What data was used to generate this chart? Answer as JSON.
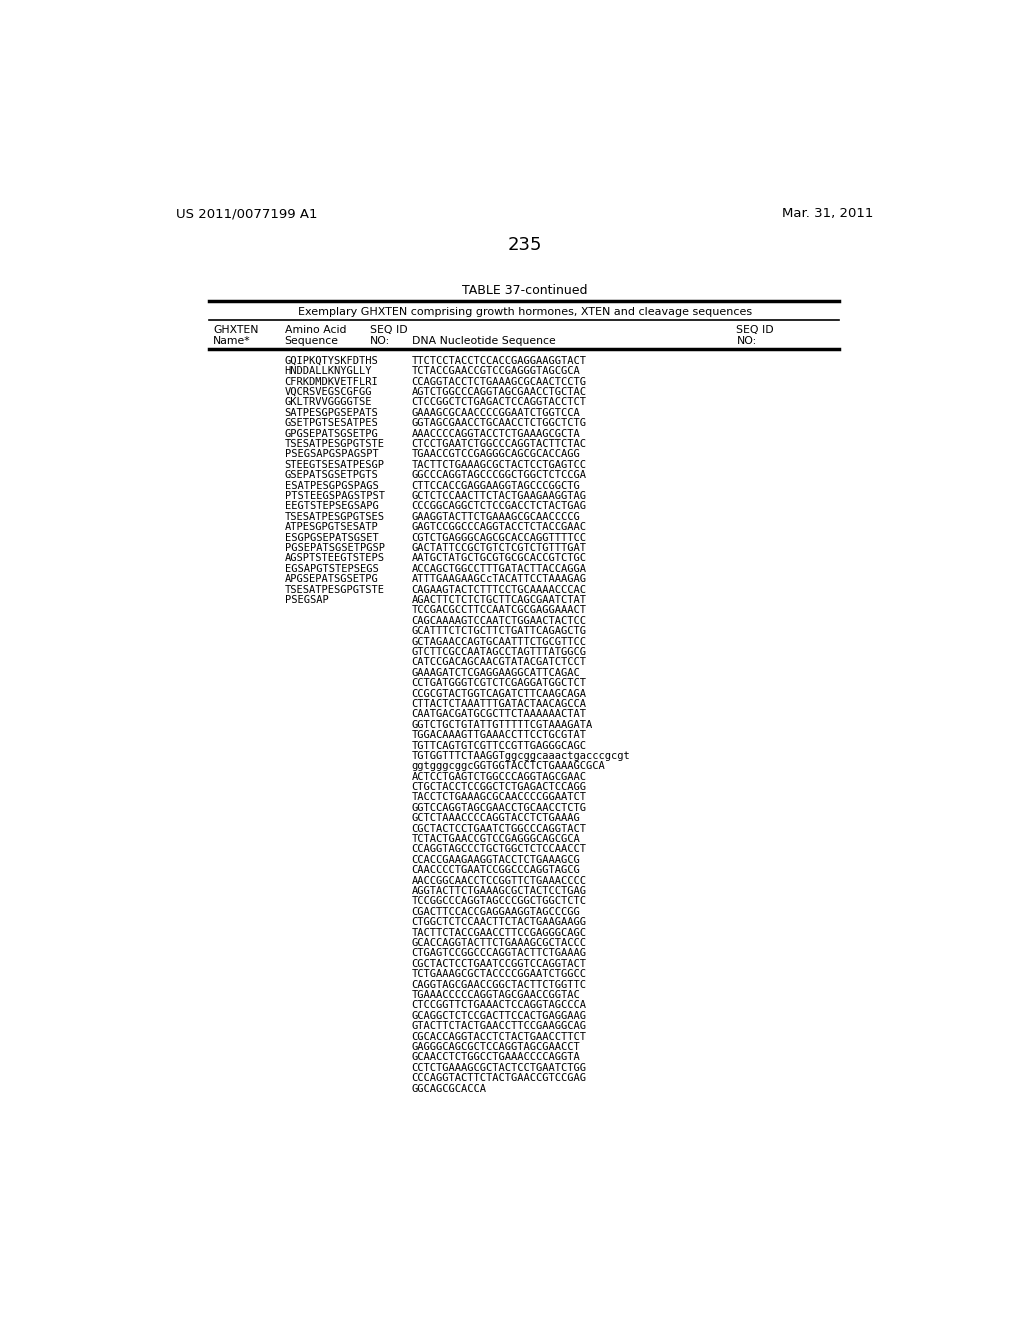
{
  "page_header_left": "US 2011/0077199 A1",
  "page_header_right": "Mar. 31, 2011",
  "page_number": "235",
  "table_title": "TABLE 37-continued",
  "table_subtitle": "Exemplary GHXTEN comprising growth hormones, XTEN and cleavage sequences",
  "col1_header1": "GHXTEN",
  "col1_header2": "Name*",
  "col2_header1": "Amino Acid",
  "col2_header2": "Sequence",
  "col3_header1": "SEQ ID",
  "col3_header2": "NO:",
  "col4_header1": "DNA Nucleotide Sequence",
  "col5_header1": "SEQ ID",
  "col5_header2": "NO:",
  "left_entries": [
    [
      "GQIPKQTYSKFDTHS",
      "TTCTCCTACCTCCACCGAGGAAGGTACT"
    ],
    [
      "HNDDALLKNYGLLY",
      "TCTACCGAACCGTCCGAGGGTAGCGCA"
    ],
    [
      "CFRKDMDKVETFLRI",
      "CCAGGTACCTCTGAAAGCGCAACTCCTG"
    ],
    [
      "VQCRSVEGSCGFGG",
      "AGTCTGGCCCAGGTAGCGAACCTGCTAC"
    ],
    [
      "GKLTRVVGGGGTSE",
      "CTCCGGCTCTGAGACTCCAGGTACCTCT"
    ],
    [
      "SATPESGPGSEPATS",
      "GAAAGCGCAACCCCGGAATCTGGTCCA"
    ],
    [
      "GSETPGTSESATPES",
      "GGTAGCGAACCTGCAACCTCTGGCTCTG"
    ],
    [
      "GPGSEPATSGSETPG",
      "AAACCCCAGGTACCTCTGAAAGCGCTA"
    ],
    [
      "TSESATPESGPGTSTE",
      "CTCCTGAATCTGGCCCAGGTACTTCTAC"
    ],
    [
      "PSEGSAPGSPAGSPT",
      "TGAACCGTCCGAGGGCAGCGCACCAGG"
    ],
    [
      "STEEGTSESATPESGP",
      "TACTTCTGAAAGCGCTACTCCTGAGTCC"
    ],
    [
      "GSEPATSGSETPGTS",
      "GGCCCAGGTAGCCCGGCTGGCTCTCCGA"
    ],
    [
      "ESATPESGPGSPAGS",
      "CTTCCACCGAGGAAGGTAGCCCGGCTG"
    ],
    [
      "PTSTEEGSPAGSTPST",
      "GCTCTCCAACTTCTACTGAAGAAGGTAG"
    ],
    [
      "EEGTSTEPSEGSAPG",
      "CCCGGCAGGCTCTCCGACCTCTACTGAG"
    ],
    [
      "TSESATPESGPGTSES",
      "GAAGGTACTTCTGAAAGCGCAACCCCG"
    ],
    [
      "ATPESGPGTSESATP",
      "GAGTCCGGCCCAGGTACCTCTACCGAAC"
    ],
    [
      "ESGPGSEPATSGSET",
      "CGTCTGAGGGCAGCGCACCAGGTTTTCC"
    ],
    [
      "PGSEPATSGSETPGSP",
      "GACTATTCCGCTGTCTCGTCTGTTTGAT"
    ],
    [
      "AGSPTSTEEGTSTEРS",
      "AATGCTATGCTGCGTGCGCACCGTCTGC"
    ],
    [
      "EGSAPGTSTEPSEGS",
      "ACCAGCTGGCCTTTGATACTTACCAGGA"
    ],
    [
      "APGSEPATSGSETPG",
      "ATTTGAAGAAGCcTACATTCCTAAAGAG"
    ],
    [
      "TSESATPESGPGTSTE",
      "CAGAAGTACTCTTTCCTGCAAAACCCAC"
    ],
    [
      "PSEGSAP",
      "AGACTTCTCTCTGCTTCAGCGAATCTAT"
    ]
  ],
  "continuation_lines": [
    "TCCGACGCCTTCCAATCGCGAGGAAACT",
    "CAGCAAAAGTCCAATCTGGAACTACTCC",
    "GCATTTCTCTGCTTCTGATTCAGAGCTG",
    "GCTAGAACCAGTGCAATTTCTGCGTTCC",
    "GTCTTCGCCAATAGCCTAGTTTATGGCG",
    "CATCCGACAGCAACGTATACGATCTCCT",
    "GAAAGATCTCGAGGAAGGCATTCAGAC",
    "CCTGATGGGTCGTCTCGAGGATGGCTCT",
    "CCGCGTACTGGTCAGATCTTCAAGCAGA",
    "CTTACTCTAAATTTGATACTAACAGCCA",
    "CAATGACGATGCGCTTCTAAAAAACTAT",
    "GGTCTGCTGTATTGTTTTTCGTAAAGATA",
    "TGGACAAAGTTGAAACCTTCCTGCGTAT",
    "TGTTCAGTGTCGTTCCGTTGAGGGCAGC",
    "TGTGGTTTCTAAGGTggcggcaaactgacccgcgt",
    "ggtgggcggcGGTGGTACCTCTGAAAGCGCA",
    "ACTCCTGAGTCTGGCCCAGGTAGCGAAC",
    "CTGCTACCTCCGGCTCTGAGACTCCAGG",
    "TACCTCTGAAAGCGCAACCCCGGAATCT",
    "GGTCCAGGTAGCGAACCTGCAACCTCTG",
    "GCTCTAAACCCCAGGTACCTCTGAAAG",
    "CGCTACTCCTGAATCTGGCCCAGGTACT",
    "TCTACTGAACCGTCCGAGGGCAGCGCA",
    "CCAGGTAGCCCTGCTGGCTCTCCAACCT",
    "CCACCGAAGAAGGTACCTCTGAAAGCG",
    "CAACCCCTGAATCCGGCCCAGGTAGCG",
    "AACCGGCAACCTCCGGTTCTGAAACCCC",
    "AGGTACTTCTGAAAGCGCTACTCCTGAG",
    "TCCGGCCCAGGTAGCCCGGCTGGCTCTC",
    "CGACTTCCACCGAGGAAGGTAGCCCGG",
    "CTGGCTCTCCAACTTCTACTGAAGAAGG",
    "TACTTCTACCGAACCTTCCGAGGGCAGC",
    "GCACCAGGTACTTCTGAAAGCGCTACCC",
    "CTGAGTCCGGCCCAGGTACTTCTGAAAG",
    "CGCTACTCCTGAATCCGGTCCAGGTACT",
    "TCTGAAAGCGCTACCCCGGAATCTGGCC",
    "CAGGTAGCGAACCGGCTACTTCTGGTTC",
    "TGAAACCCCCAGGTAGCGAACCGGTAC",
    "CTCCGGTTCTGAAACTCCAGGTAGCCCA",
    "GCAGGCTCTCCGACTTCCACTGAGGAAG",
    "GTACTTCTACTGAACCTTCCGAAGGCAG",
    "CGCACCAGGTACCTCTACTGAACCTTCT",
    "GAGGGCAGCGCTCCAGGTAGCGAACCT",
    "GCAACCTCTGGCCTGAAACCCCAGGTA",
    "CCTCTGAAAGCGCTACTCCTGAATCTGG",
    "CCCAGGTACTTCTACTGAACCGTCCGAG",
    "GGCAGCGCACCA"
  ]
}
